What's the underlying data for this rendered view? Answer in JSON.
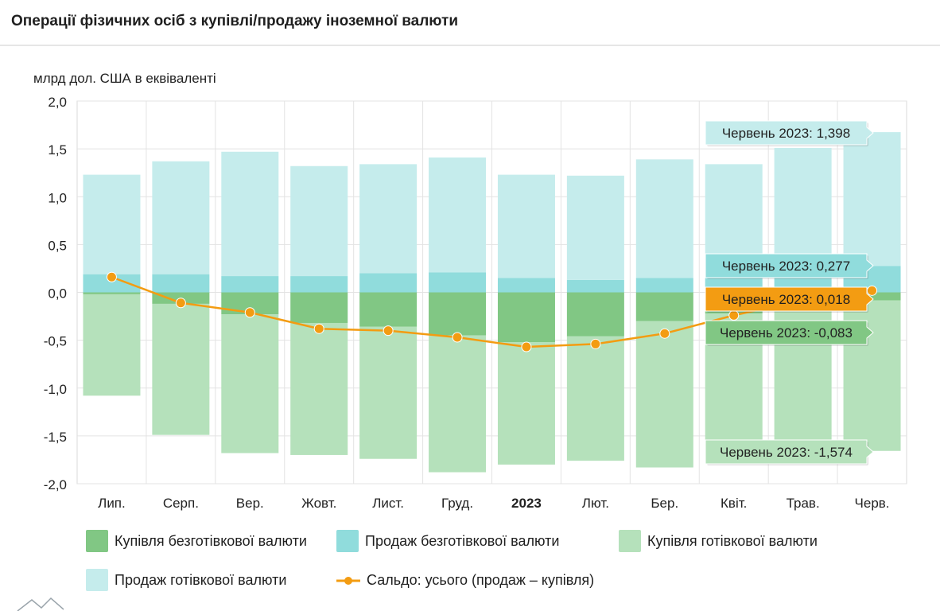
{
  "title": "Операції фізичних осіб з купівлі/продажу іноземної валюти",
  "chart_data": {
    "type": "bar",
    "stacked": true,
    "ylabel": "млрд дол. США в еквіваленті",
    "ylim": [
      -2.0,
      2.0
    ],
    "yticks": [
      "2,0",
      "1,5",
      "1,0",
      "0,5",
      "0,0",
      "-0,5",
      "-1,0",
      "-1,5",
      "-2,0"
    ],
    "ytick_values": [
      2.0,
      1.5,
      1.0,
      0.5,
      0.0,
      -0.5,
      -1.0,
      -1.5,
      -2.0
    ],
    "categories": [
      "Лип.",
      "Серп.",
      "Вер.",
      "Жовт.",
      "Лист.",
      "Груд.",
      "2023",
      "Лют.",
      "Бер.",
      "Квіт.",
      "Трав.",
      "Черв."
    ],
    "bold_category": "2023",
    "series": [
      {
        "name": "Купівля безготівкової валюти",
        "color": "#81c784",
        "kind": "bar_neg",
        "values": [
          -0.02,
          -0.12,
          -0.23,
          -0.32,
          -0.36,
          -0.45,
          -0.52,
          -0.46,
          -0.3,
          -0.22,
          -0.1,
          -0.083
        ]
      },
      {
        "name": "Продаж безготівкової валюти",
        "color": "#90dcdc",
        "kind": "bar_pos",
        "values": [
          0.19,
          0.19,
          0.17,
          0.17,
          0.2,
          0.21,
          0.15,
          0.13,
          0.15,
          0.22,
          0.25,
          0.277
        ]
      },
      {
        "name": "Купівля готівкової валюти",
        "color": "#b5e1bb",
        "kind": "bar_neg",
        "values": [
          -1.06,
          -1.37,
          -1.45,
          -1.38,
          -1.38,
          -1.43,
          -1.28,
          -1.3,
          -1.53,
          -1.45,
          -1.5,
          -1.574
        ]
      },
      {
        "name": "Продаж готівкової валюти",
        "color": "#c5ecec",
        "kind": "bar_pos",
        "values": [
          1.04,
          1.18,
          1.3,
          1.15,
          1.14,
          1.2,
          1.08,
          1.09,
          1.24,
          1.12,
          1.26,
          1.398
        ]
      },
      {
        "name": "Сальдо: усього (продаж – купівля)",
        "color": "#f39c12",
        "kind": "line",
        "values": [
          0.16,
          -0.11,
          -0.21,
          -0.38,
          -0.4,
          -0.47,
          -0.57,
          -0.54,
          -0.43,
          -0.24,
          -0.08,
          0.018
        ]
      }
    ],
    "tooltips": [
      {
        "text": "Червень 2023: 1,398",
        "bg": "#c5ecec",
        "fg": "#222222"
      },
      {
        "text": "Червень 2023: 0,277",
        "bg": "#90dcdc",
        "fg": "#222222"
      },
      {
        "text": "Червень 2023: 0,018",
        "bg": "#f39c12",
        "fg": "#1f1f1f"
      },
      {
        "text": "Червень 2023: -0,083",
        "bg": "#81c784",
        "fg": "#222222"
      },
      {
        "text": "Червень 2023: -1,574",
        "bg": "#b5e1bb",
        "fg": "#222222"
      }
    ]
  },
  "legend": [
    {
      "label": "Купівля безготівкової валюти",
      "color": "#81c784",
      "type": "box"
    },
    {
      "label": "Продаж безготівкової валюти",
      "color": "#90dcdc",
      "type": "box"
    },
    {
      "label": "Купівля готівкової валюти",
      "color": "#b5e1bb",
      "type": "box"
    },
    {
      "label": "Продаж готівкової валюти",
      "color": "#c5ecec",
      "type": "box"
    },
    {
      "label": "Сальдо: усього (продаж – купівля)",
      "color": "#f39c12",
      "type": "line"
    }
  ]
}
